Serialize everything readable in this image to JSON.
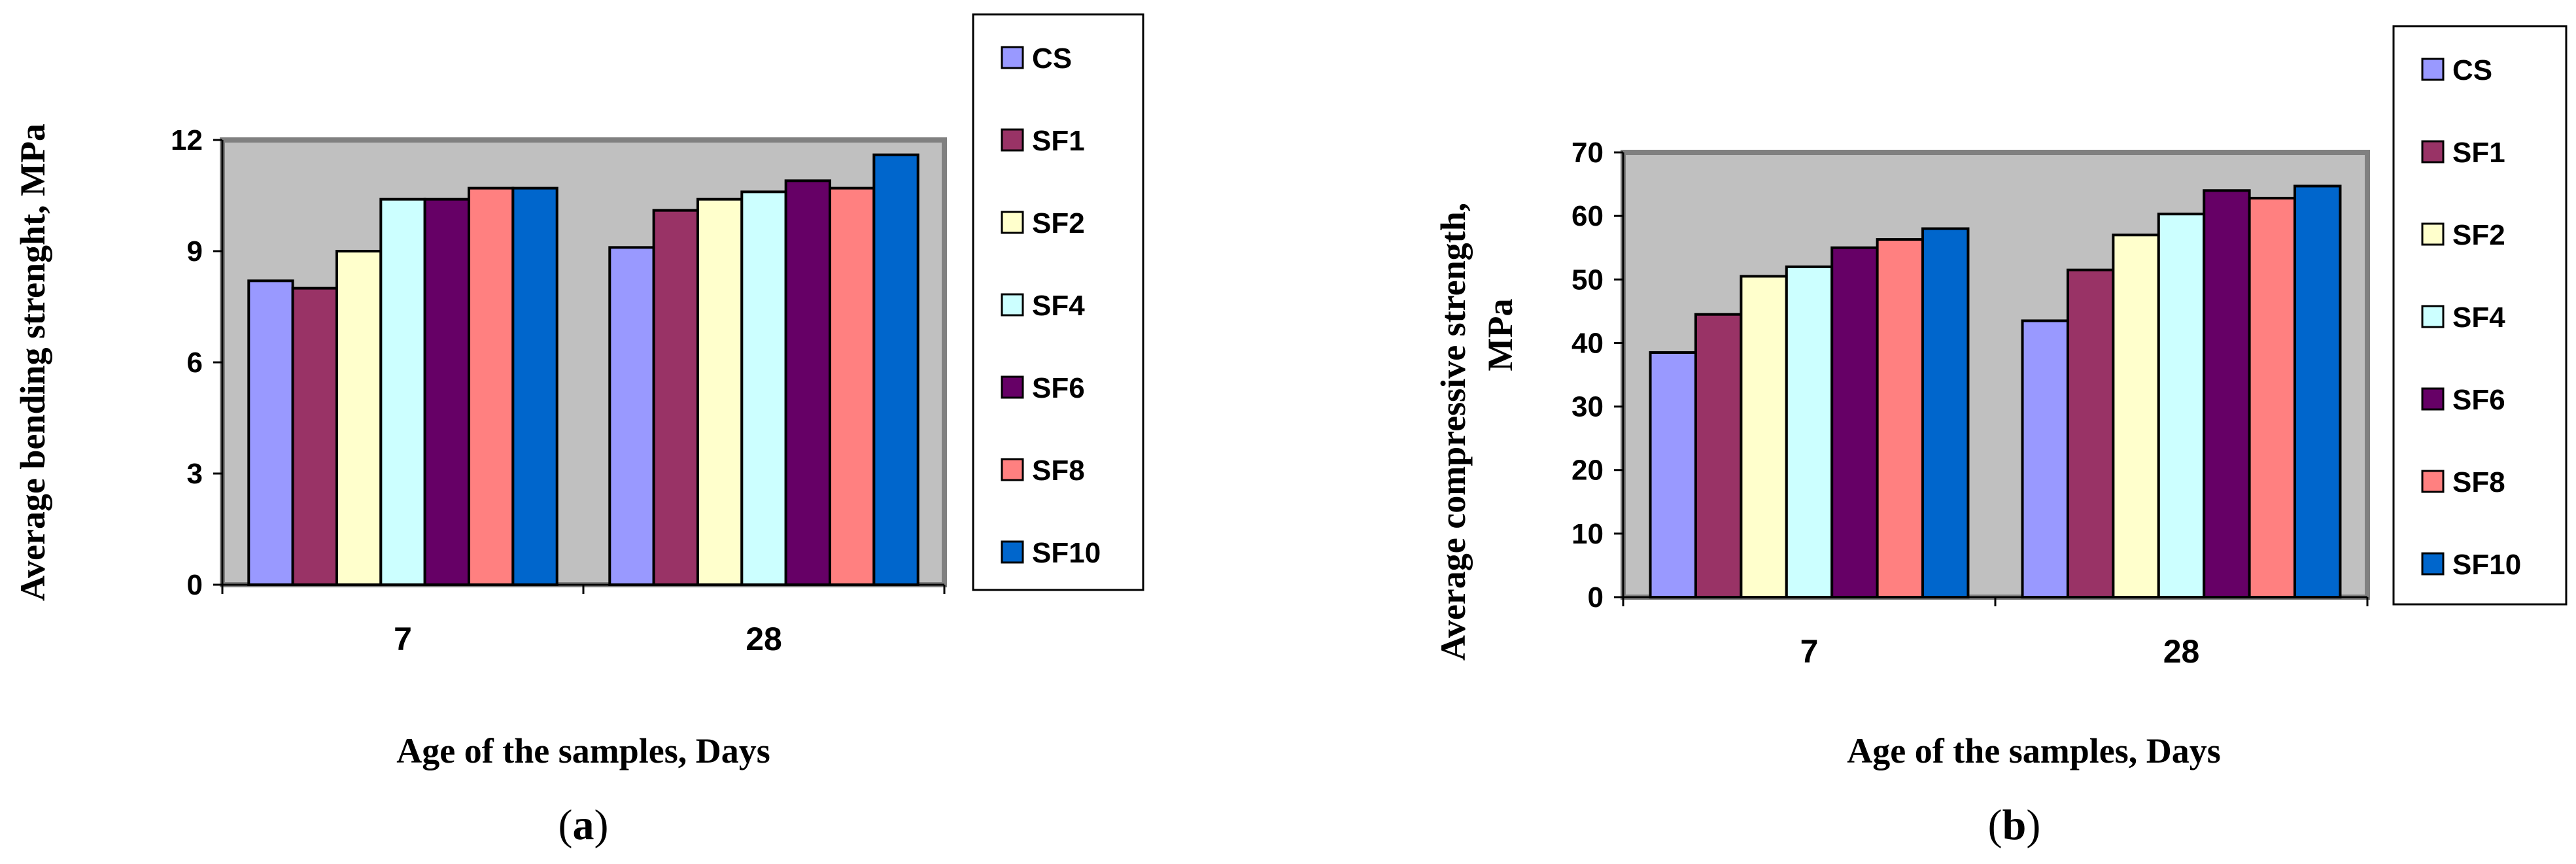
{
  "chart_data": [
    {
      "type": "bar",
      "panel": "(a)",
      "panel_letter": "a",
      "categories": [
        "7",
        "28"
      ],
      "series": [
        {
          "name": "CS",
          "values": [
            8.2,
            9.1
          ]
        },
        {
          "name": "SF1",
          "values": [
            8.0,
            10.1
          ]
        },
        {
          "name": "SF2",
          "values": [
            9.0,
            10.4
          ]
        },
        {
          "name": "SF4",
          "values": [
            10.4,
            10.6
          ]
        },
        {
          "name": "SF6",
          "values": [
            10.4,
            10.9
          ]
        },
        {
          "name": "SF8",
          "values": [
            10.7,
            10.7
          ]
        },
        {
          "name": "SF10",
          "values": [
            10.7,
            11.6
          ]
        }
      ],
      "xlabel": "Age of the samples, Days",
      "ylabel": "Average bending strenght, MPa",
      "ylim": [
        0,
        12
      ],
      "yticks": [
        "0",
        "3",
        "6",
        "9",
        "12"
      ],
      "grid": false,
      "legend": "right"
    },
    {
      "type": "bar",
      "panel": "(b)",
      "panel_letter": "b",
      "categories": [
        "7",
        "28"
      ],
      "series": [
        {
          "name": "CS",
          "values": [
            38.5,
            43.5
          ]
        },
        {
          "name": "SF1",
          "values": [
            44.5,
            51.5
          ]
        },
        {
          "name": "SF2",
          "values": [
            50.5,
            57.0
          ]
        },
        {
          "name": "SF4",
          "values": [
            52.0,
            60.3
          ]
        },
        {
          "name": "SF6",
          "values": [
            55.0,
            64.0
          ]
        },
        {
          "name": "SF8",
          "values": [
            56.3,
            62.8
          ]
        },
        {
          "name": "SF10",
          "values": [
            58.0,
            64.7
          ]
        }
      ],
      "xlabel": "Age of the samples, Days",
      "ylabel_line1": "Average compressive strength,",
      "ylabel_line2": "MPa",
      "ylim": [
        0,
        70
      ],
      "yticks": [
        "0",
        "10",
        "20",
        "30",
        "40",
        "50",
        "60",
        "70"
      ],
      "grid": false,
      "legend": "right"
    }
  ],
  "colors": {
    "plot_background": "#c0c0c0",
    "CS": "#9999ff",
    "SF1": "#993366",
    "SF2": "#ffffcc",
    "SF4": "#ccffff",
    "SF6": "#660066",
    "SF8": "#ff8080",
    "SF10": "#0066cc"
  }
}
